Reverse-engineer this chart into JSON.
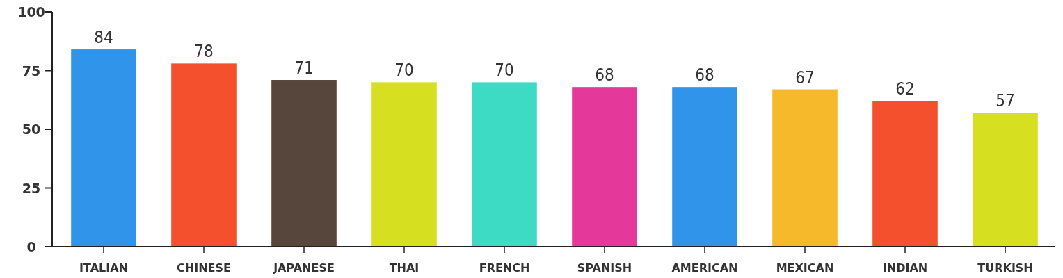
{
  "chart_data": {
    "type": "bar",
    "categories": [
      "ITALIAN",
      "CHINESE",
      "JAPANESE",
      "THAI",
      "FRENCH",
      "SPANISH",
      "AMERICAN",
      "MEXICAN",
      "INDIAN",
      "TURKISH"
    ],
    "values": [
      84,
      78,
      71,
      70,
      70,
      68,
      68,
      67,
      62,
      57
    ],
    "colors": [
      "#3094ea",
      "#f5502d",
      "#57463c",
      "#d6e021",
      "#3ddbc3",
      "#e4399b",
      "#3094ea",
      "#f6b92b",
      "#f5502d",
      "#d6e021"
    ],
    "ylim": [
      0,
      100
    ],
    "yticks": [
      0,
      25,
      50,
      75,
      100
    ],
    "grid": false,
    "data_labels": true
  }
}
